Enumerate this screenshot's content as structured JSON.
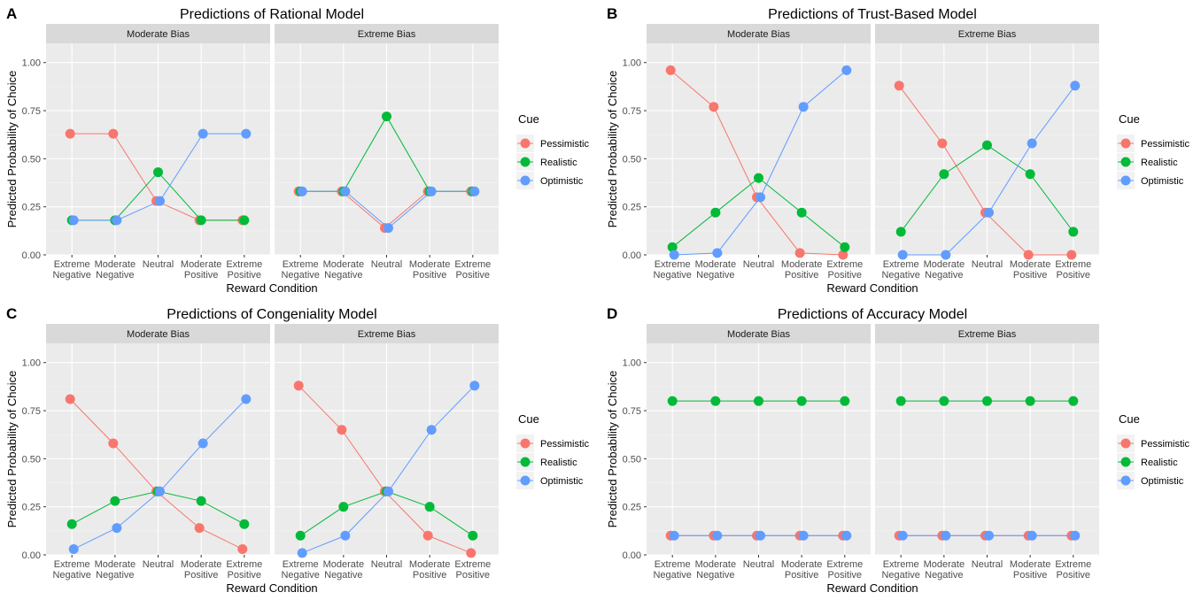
{
  "colors": {
    "Pessimistic": "#F8766D",
    "Realistic": "#00BA38",
    "Optimistic": "#619CFF",
    "panel_bg": "#EBEBEB",
    "strip_bg": "#D9D9D9",
    "grid_major": "#FFFFFF"
  },
  "legend": {
    "title": "Cue",
    "items": [
      "Pessimistic",
      "Realistic",
      "Optimistic"
    ]
  },
  "chart_data": [
    {
      "type": "line",
      "letter": "A",
      "title": "Predictions of Rational Model",
      "xlabel": "Reward Condition",
      "ylabel": "Predicted Probability of Choice",
      "ylim": [
        0,
        1.1
      ],
      "yticks": [
        "0.00",
        "0.25",
        "0.50",
        "0.75",
        "1.00"
      ],
      "categories": [
        "Extreme\nNegative",
        "Moderate\nNegative",
        "Neutral",
        "Moderate\nPositive",
        "Extreme\nPositive"
      ],
      "facets": [
        {
          "label": "Moderate Bias",
          "series": [
            {
              "name": "Pessimistic",
              "values": [
                0.63,
                0.63,
                0.28,
                0.18,
                0.18
              ]
            },
            {
              "name": "Realistic",
              "values": [
                0.18,
                0.18,
                0.43,
                0.18,
                0.18
              ]
            },
            {
              "name": "Optimistic",
              "values": [
                0.18,
                0.18,
                0.28,
                0.63,
                0.63
              ]
            }
          ]
        },
        {
          "label": "Extreme Bias",
          "series": [
            {
              "name": "Pessimistic",
              "values": [
                0.33,
                0.33,
                0.14,
                0.33,
                0.33
              ]
            },
            {
              "name": "Realistic",
              "values": [
                0.33,
                0.33,
                0.72,
                0.33,
                0.33
              ]
            },
            {
              "name": "Optimistic",
              "values": [
                0.33,
                0.33,
                0.14,
                0.33,
                0.33
              ]
            }
          ]
        }
      ]
    },
    {
      "type": "line",
      "letter": "B",
      "title": "Predictions of Trust-Based Model",
      "xlabel": "Reward Condition",
      "ylabel": "Predicted Probability of Choice",
      "ylim": [
        0,
        1.1
      ],
      "yticks": [
        "0.00",
        "0.25",
        "0.50",
        "0.75",
        "1.00"
      ],
      "categories": [
        "Extreme\nNegative",
        "Moderate\nNegative",
        "Neutral",
        "Moderate\nPositive",
        "Extreme\nPositive"
      ],
      "facets": [
        {
          "label": "Moderate Bias",
          "series": [
            {
              "name": "Pessimistic",
              "values": [
                0.96,
                0.77,
                0.3,
                0.01,
                0.0
              ]
            },
            {
              "name": "Realistic",
              "values": [
                0.04,
                0.22,
                0.4,
                0.22,
                0.04
              ]
            },
            {
              "name": "Optimistic",
              "values": [
                0.0,
                0.01,
                0.3,
                0.77,
                0.96
              ]
            }
          ]
        },
        {
          "label": "Extreme Bias",
          "series": [
            {
              "name": "Pessimistic",
              "values": [
                0.88,
                0.58,
                0.22,
                0.0,
                0.0
              ]
            },
            {
              "name": "Realistic",
              "values": [
                0.12,
                0.42,
                0.57,
                0.42,
                0.12
              ]
            },
            {
              "name": "Optimistic",
              "values": [
                0.0,
                0.0,
                0.22,
                0.58,
                0.88
              ]
            }
          ]
        }
      ]
    },
    {
      "type": "line",
      "letter": "C",
      "title": "Predictions of Congeniality Model",
      "xlabel": "Reward Condition",
      "ylabel": "Predicted Probability of Choice",
      "ylim": [
        0,
        1.1
      ],
      "yticks": [
        "0.00",
        "0.25",
        "0.50",
        "0.75",
        "1.00"
      ],
      "categories": [
        "Extreme\nNegative",
        "Moderate\nNegative",
        "Neutral",
        "Moderate\nPositive",
        "Extreme\nPositive"
      ],
      "facets": [
        {
          "label": "Moderate Bias",
          "series": [
            {
              "name": "Pessimistic",
              "values": [
                0.81,
                0.58,
                0.33,
                0.14,
                0.03
              ]
            },
            {
              "name": "Realistic",
              "values": [
                0.16,
                0.28,
                0.33,
                0.28,
                0.16
              ]
            },
            {
              "name": "Optimistic",
              "values": [
                0.03,
                0.14,
                0.33,
                0.58,
                0.81
              ]
            }
          ]
        },
        {
          "label": "Extreme Bias",
          "series": [
            {
              "name": "Pessimistic",
              "values": [
                0.88,
                0.65,
                0.33,
                0.1,
                0.01
              ]
            },
            {
              "name": "Realistic",
              "values": [
                0.1,
                0.25,
                0.33,
                0.25,
                0.1
              ]
            },
            {
              "name": "Optimistic",
              "values": [
                0.01,
                0.1,
                0.33,
                0.65,
                0.88
              ]
            }
          ]
        }
      ]
    },
    {
      "type": "line",
      "letter": "D",
      "title": "Predictions of Accuracy Model",
      "xlabel": "Reward Condition",
      "ylabel": "Predicted Probability of Choice",
      "ylim": [
        0,
        1.1
      ],
      "yticks": [
        "0.00",
        "0.25",
        "0.50",
        "0.75",
        "1.00"
      ],
      "categories": [
        "Extreme\nNegative",
        "Moderate\nNegative",
        "Neutral",
        "Moderate\nPositive",
        "Extreme\nPositive"
      ],
      "facets": [
        {
          "label": "Moderate Bias",
          "series": [
            {
              "name": "Pessimistic",
              "values": [
                0.1,
                0.1,
                0.1,
                0.1,
                0.1
              ]
            },
            {
              "name": "Realistic",
              "values": [
                0.8,
                0.8,
                0.8,
                0.8,
                0.8
              ]
            },
            {
              "name": "Optimistic",
              "values": [
                0.1,
                0.1,
                0.1,
                0.1,
                0.1
              ]
            }
          ]
        },
        {
          "label": "Extreme Bias",
          "series": [
            {
              "name": "Pessimistic",
              "values": [
                0.1,
                0.1,
                0.1,
                0.1,
                0.1
              ]
            },
            {
              "name": "Realistic",
              "values": [
                0.8,
                0.8,
                0.8,
                0.8,
                0.8
              ]
            },
            {
              "name": "Optimistic",
              "values": [
                0.1,
                0.1,
                0.1,
                0.1,
                0.1
              ]
            }
          ]
        }
      ]
    }
  ]
}
